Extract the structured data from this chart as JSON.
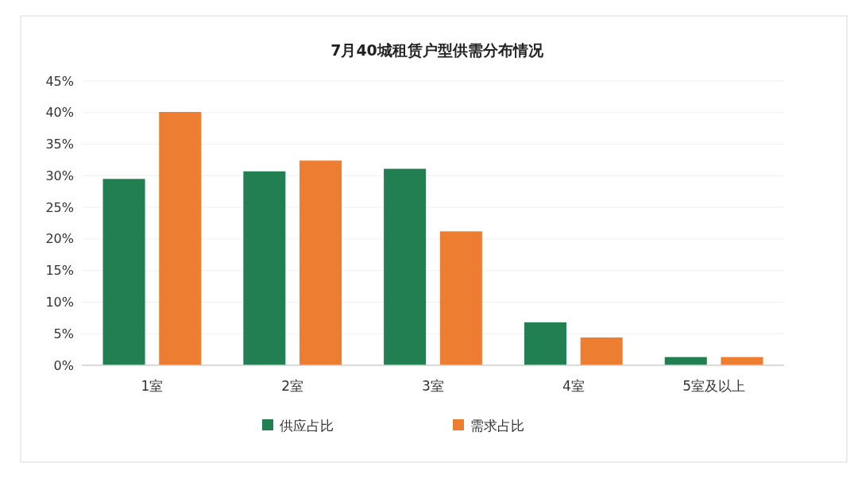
{
  "chart_data": {
    "type": "bar",
    "title": "7月40城租赁户型供需分布情况",
    "categories": [
      "1室",
      "2室",
      "3室",
      "4室",
      "5室及以上"
    ],
    "series": [
      {
        "name": "供应占比",
        "color": "#217f52",
        "values": [
          29.5,
          30.7,
          31.1,
          6.8,
          1.3
        ]
      },
      {
        "name": "需求占比",
        "color": "#ed7d31",
        "values": [
          40.1,
          32.4,
          21.2,
          4.4,
          1.3
        ]
      }
    ],
    "ylim": [
      0,
      45
    ],
    "yticks": [
      {
        "value": 0,
        "label": "0%"
      },
      {
        "value": 5,
        "label": "5%"
      },
      {
        "value": 10,
        "label": "10%"
      },
      {
        "value": 15,
        "label": "15%"
      },
      {
        "value": 20,
        "label": "20%"
      },
      {
        "value": 25,
        "label": "25%"
      },
      {
        "value": 30,
        "label": "30%"
      },
      {
        "value": 35,
        "label": "35%"
      },
      {
        "value": 40,
        "label": "40%"
      },
      {
        "value": 45,
        "label": "45%"
      }
    ],
    "grid": "y",
    "legend": "bottom"
  }
}
